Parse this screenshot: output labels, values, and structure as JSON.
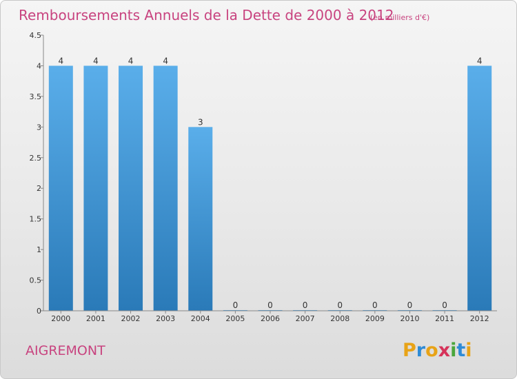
{
  "chart_data": {
    "type": "bar",
    "title": "Remboursements Annuels de la Dette de 2000 à 2012",
    "subtitle": "(en milliers d'€)",
    "categories": [
      "2000",
      "2001",
      "2002",
      "2003",
      "2004",
      "2005",
      "2006",
      "2007",
      "2008",
      "2009",
      "2010",
      "2011",
      "2012"
    ],
    "values": [
      4,
      4,
      4,
      4,
      3,
      0,
      0,
      0,
      0,
      0,
      0,
      0,
      4
    ],
    "data_labels": [
      "4",
      "4",
      "4",
      "4",
      "3",
      "0",
      "0",
      "0",
      "0",
      "0",
      "0",
      "0",
      "4"
    ],
    "ylim": [
      0,
      4.5
    ],
    "yticks": [
      0,
      0.5,
      1,
      1.5,
      2,
      2.5,
      3,
      3.5,
      4,
      4.5
    ],
    "ytick_labels": [
      "0",
      "0.5",
      "1",
      "1.5",
      "2",
      "2.5",
      "3",
      "3.5",
      "4",
      "4.5"
    ],
    "xlabel": "",
    "ylabel": "",
    "grid": false,
    "bar_color_top": "#5aaeea",
    "bar_color_bottom": "#2a7ab8"
  },
  "commune": "AIGREMONT",
  "logo": {
    "text": "Proxiti",
    "letters": [
      {
        "ch": "P",
        "color": "#e8a317"
      },
      {
        "ch": "r",
        "color": "#2e8bd6"
      },
      {
        "ch": "o",
        "color": "#e8a317"
      },
      {
        "ch": "x",
        "color": "#d6335a"
      },
      {
        "ch": "i",
        "color": "#4aa63c"
      },
      {
        "ch": "t",
        "color": "#2e8bd6"
      },
      {
        "ch": "i",
        "color": "#e8a317"
      }
    ]
  }
}
